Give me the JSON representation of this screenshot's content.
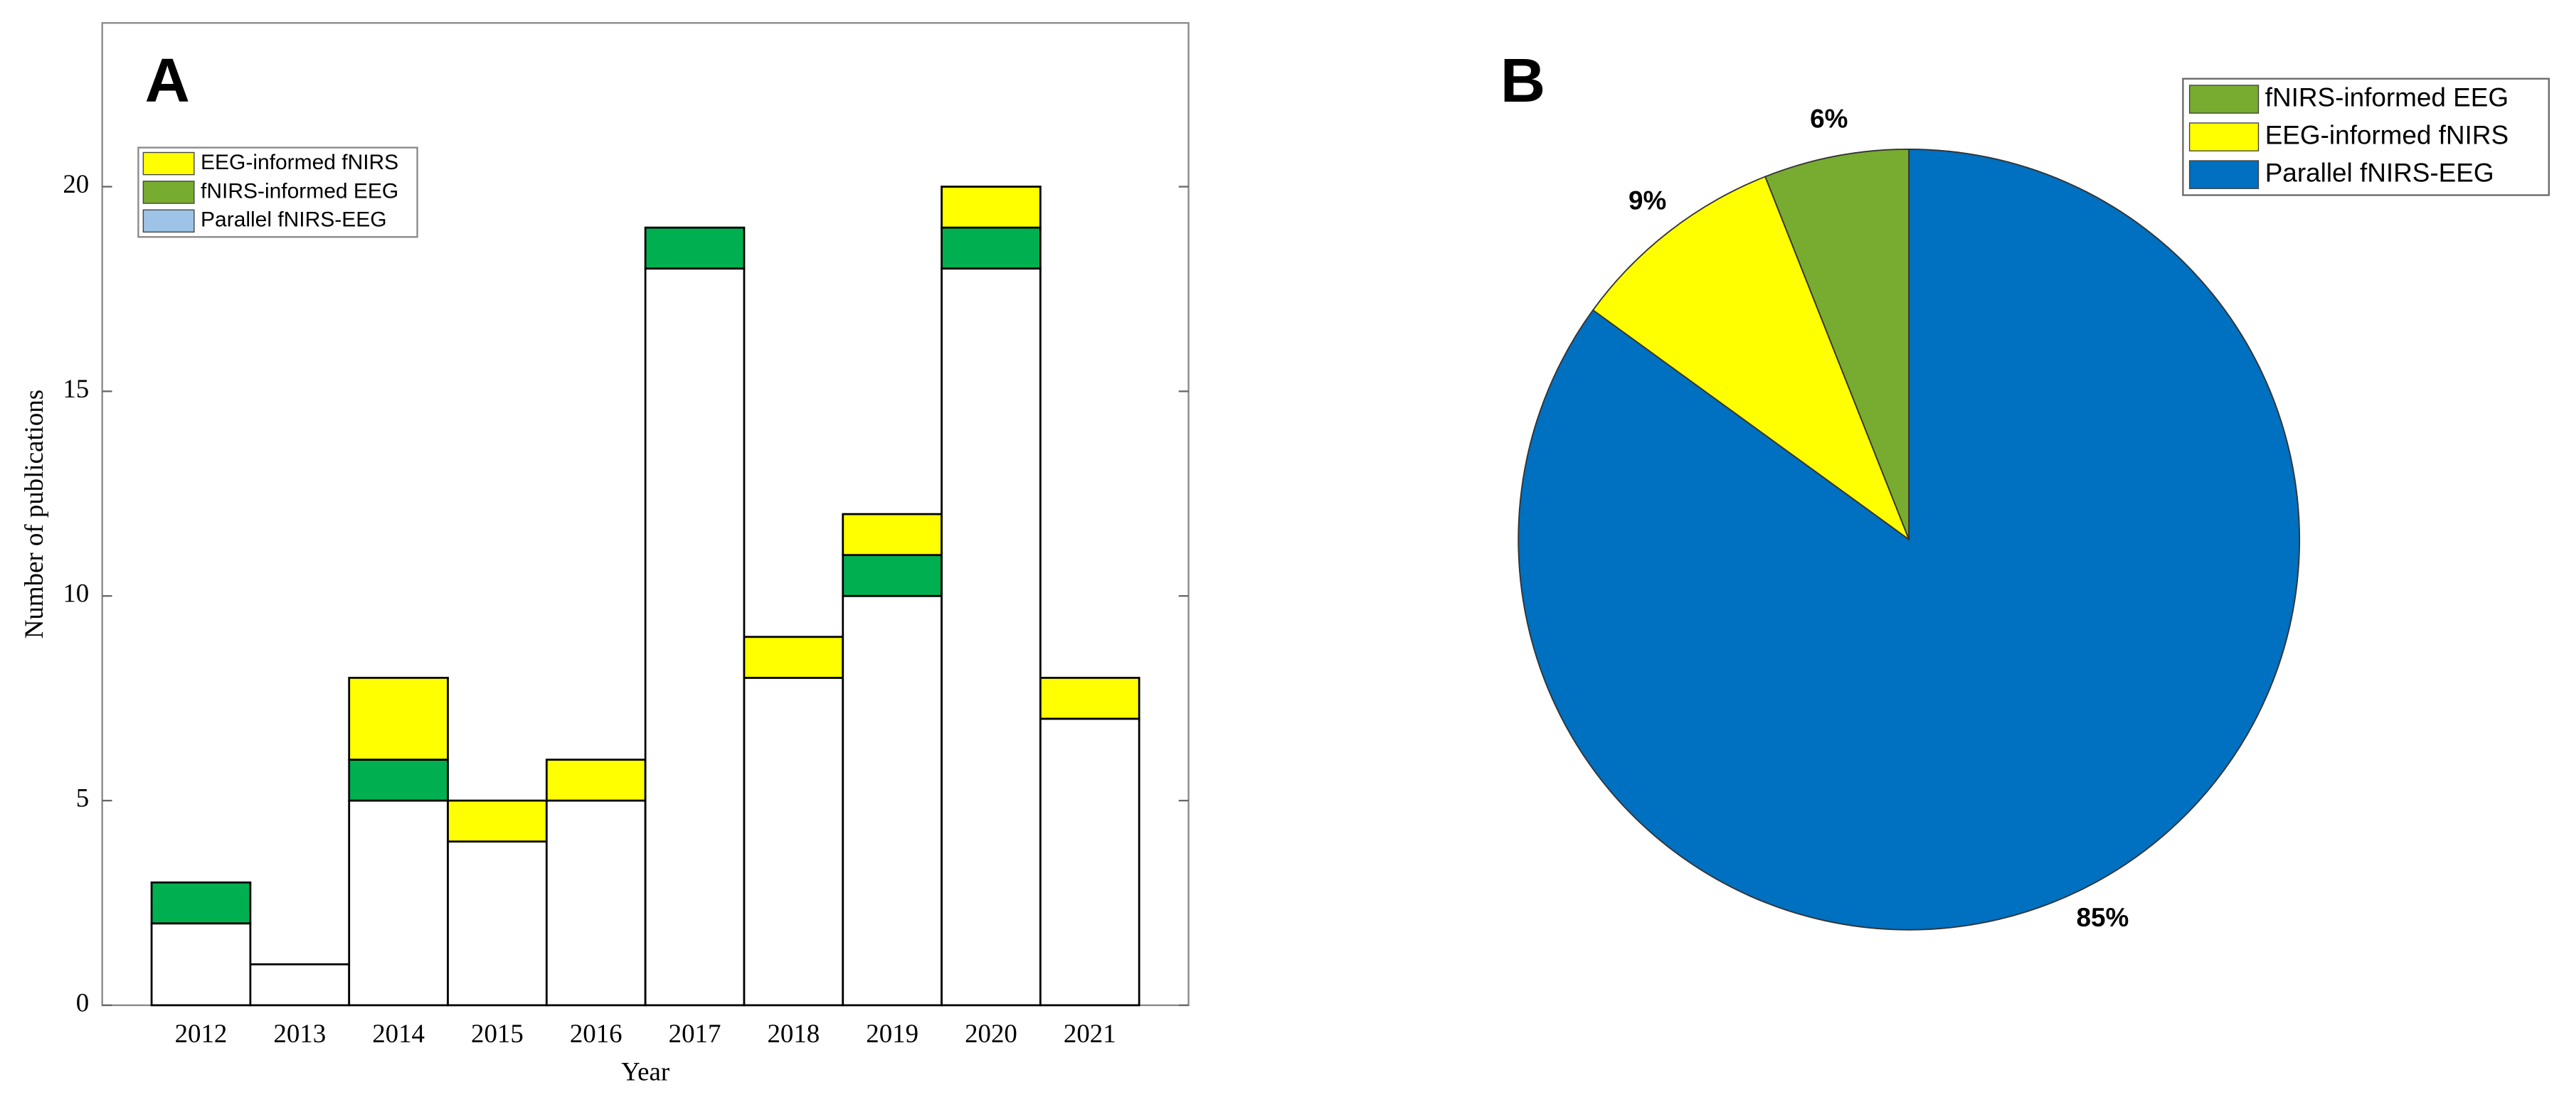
{
  "chart_data": [
    {
      "type": "bar",
      "stacked": true,
      "panel_label": "A",
      "xlabel": "Year",
      "ylabel": "Number of publications",
      "categories": [
        "2012",
        "2013",
        "2014",
        "2015",
        "2016",
        "2017",
        "2018",
        "2019",
        "2020",
        "2021"
      ],
      "series": [
        {
          "name": "Parallel fNIRS-EEG",
          "color": "#ffffff",
          "legend_color": "#9dc3e6",
          "values": [
            2,
            1,
            5,
            4,
            5,
            18,
            8,
            10,
            18,
            7
          ]
        },
        {
          "name": "fNIRS-informed EEG",
          "color": "#00b050",
          "legend_color": "#77ac30",
          "values": [
            1,
            0,
            1,
            0,
            0,
            1,
            0,
            1,
            1,
            0
          ]
        },
        {
          "name": "EEG-informed fNIRS",
          "color": "#ffff00",
          "legend_color": "#ffff00",
          "values": [
            0,
            0,
            2,
            1,
            1,
            0,
            1,
            1,
            1,
            1
          ]
        }
      ],
      "legend_reverse": true,
      "legend_loc": "upper left",
      "ylim": [
        0,
        24
      ],
      "yticks": [
        0,
        5,
        10,
        15,
        20
      ],
      "grid": false
    },
    {
      "type": "pie",
      "panel_label": "B",
      "labels": [
        "fNIRS-informed EEG",
        "EEG-informed fNIRS",
        "Parallel fNIRS-EEG"
      ],
      "values": [
        6,
        9,
        85
      ],
      "value_labels": [
        "6%",
        "9%",
        "85%"
      ],
      "colors": [
        "#77ac30",
        "#ffff00",
        "#0070c0"
      ],
      "start_angle": 90,
      "direction": "counterclockwise",
      "legend_loc": "upper right"
    }
  ]
}
